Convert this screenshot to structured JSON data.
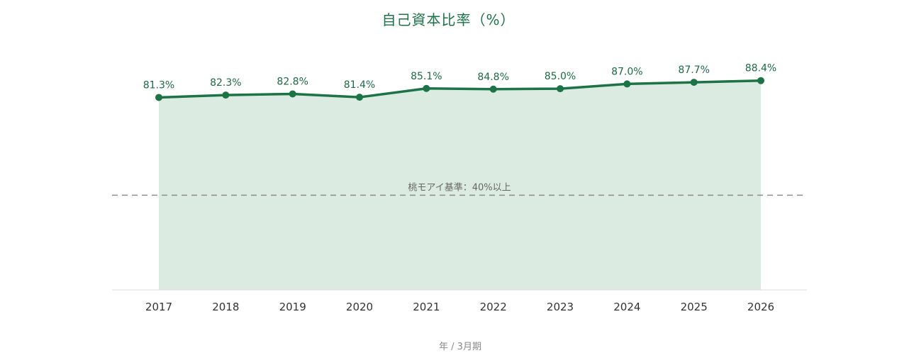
{
  "chart_data": {
    "type": "area",
    "title": "自己資本比率（%）",
    "xlabel": "年 / 3月期",
    "ylabel": "",
    "categories": [
      "2017",
      "2018",
      "2019",
      "2020",
      "2021",
      "2022",
      "2023",
      "2024",
      "2025",
      "2026"
    ],
    "series": [
      {
        "values": [
          81.3,
          82.3,
          82.8,
          81.4,
          85.1,
          84.8,
          85.0,
          87.0,
          87.7,
          88.4
        ]
      }
    ],
    "data_labels": [
      "81.3%",
      "82.3%",
      "82.8%",
      "81.4%",
      "85.1%",
      "84.8%",
      "85.0%",
      "87.0%",
      "87.7%",
      "88.4%"
    ],
    "reference_line": {
      "value": 40,
      "label": "桃モアイ基準：40%以上",
      "style": "dashed"
    },
    "ylim": [
      0,
      100
    ],
    "grid": false,
    "legend": "none",
    "colors": {
      "line": "#1b7346",
      "fill": "#dcebe2",
      "reference": "#8c8c8c",
      "baseline": "#dddddd"
    }
  }
}
